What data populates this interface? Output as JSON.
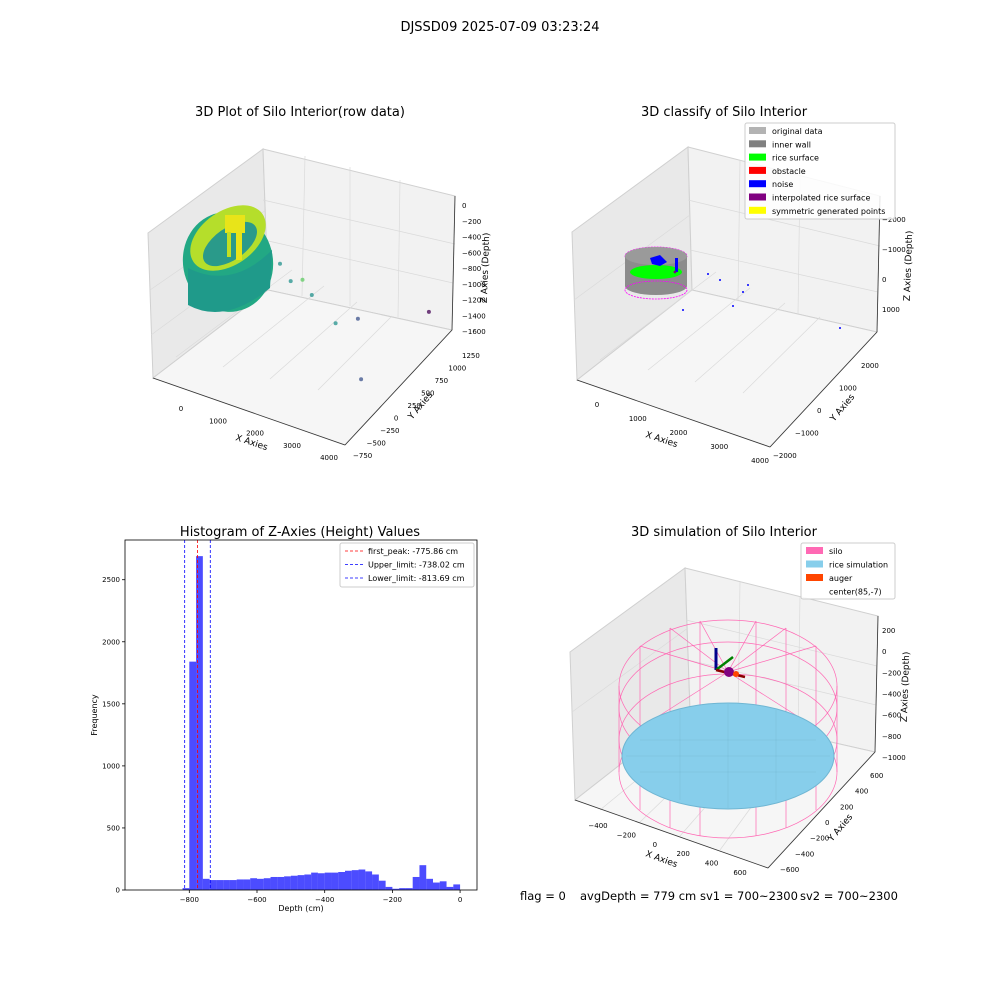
{
  "figure": {
    "title": "DJSSD09 2025-07-09 03:23:24",
    "footer": {
      "flag": "flag = 0",
      "avg": "avgDepth = 779 cm",
      "sv1": "sv1 = 700~2300",
      "sv2": "sv2 = 700~2300"
    }
  },
  "colors": {
    "hist": "#0000ff",
    "silo": "#ff69b4",
    "rice_sim": "#87ceeb",
    "auger": "#ff4500",
    "original": "#b3b3b3",
    "inner_wall": "#808080",
    "rice_surface": "#00ff00",
    "obstacle": "#ff0000",
    "noise": "#0000ff",
    "interpolated": "#800080",
    "symmetric": "#ffff00"
  },
  "chart_data": [
    {
      "type": "scatter",
      "title": "3D Plot of Silo Interior(row data)",
      "xlabel": "X Axies",
      "ylabel": "Y Axies",
      "zlabel": "Z Axies (Depth)",
      "x_ticks": [
        "0",
        "1000",
        "2000",
        "3000",
        "4000"
      ],
      "y_ticks": [
        "−750",
        "−500",
        "−250",
        "0",
        "250",
        "500",
        "750",
        "1000",
        "1250"
      ],
      "z_ticks": [
        "−1600",
        "−1400",
        "−1200",
        "−1000",
        "−800",
        "−600",
        "−400",
        "−200",
        "0"
      ],
      "colormap": "viridis",
      "points": [
        {
          "x": 1500,
          "y": 250,
          "z": -600
        },
        {
          "x": 1900,
          "y": 500,
          "z": -850
        },
        {
          "x": 2350,
          "y": 750,
          "z": -880
        },
        {
          "x": 2050,
          "y": 300,
          "z": -1000
        },
        {
          "x": 1600,
          "y": -100,
          "z": -1050
        },
        {
          "x": 2500,
          "y": -100,
          "z": -1300
        },
        {
          "x": 1050,
          "y": -550,
          "z": -1400
        },
        {
          "x": 3950,
          "y": -500,
          "z": -1550
        }
      ]
    },
    {
      "type": "scatter",
      "title": "3D classify of Silo Interior",
      "xlabel": "X Axies",
      "ylabel": "Y Axies",
      "zlabel": "Z Axies (Depth)",
      "x_ticks": [
        "0",
        "1000",
        "2000",
        "3000",
        "4000"
      ],
      "y_ticks": [
        "−2000",
        "−1000",
        "0",
        "1000",
        "2000"
      ],
      "z_ticks": [
        "−2000",
        "−1000",
        "0",
        "1000"
      ],
      "legend": [
        "original data",
        "inner wall",
        "rice surface",
        "obstacle",
        "noise",
        "interpolated rice surface",
        "symmetric generated points"
      ],
      "legend_loc": "top-right"
    },
    {
      "type": "bar",
      "title": "Histogram of Z-Axies (Height) Values",
      "xlabel": "Depth (cm)",
      "ylabel": "Frequency",
      "xlim": [
        -990,
        50
      ],
      "ylim": [
        0,
        2820
      ],
      "x_ticks": [
        -800,
        -600,
        -400,
        -200,
        0
      ],
      "x_tick_labels": [
        "−800",
        "−600",
        "−400",
        "−200",
        "0"
      ],
      "y_ticks": [
        0,
        500,
        1000,
        1500,
        2000,
        2500
      ],
      "bin_width": 20,
      "bins_start": [
        -820,
        -800,
        -780,
        -760,
        -740,
        -720,
        -700,
        -680,
        -660,
        -640,
        -620,
        -600,
        -580,
        -560,
        -540,
        -520,
        -500,
        -480,
        -460,
        -440,
        -420,
        -400,
        -380,
        -360,
        -340,
        -320,
        -300,
        -280,
        -260,
        -240,
        -220,
        -200,
        -180,
        -160,
        -140,
        -120,
        -100,
        -80,
        -60,
        -40,
        -20,
        0
      ],
      "values": [
        15,
        1840,
        2690,
        90,
        80,
        80,
        80,
        80,
        85,
        85,
        95,
        90,
        95,
        105,
        105,
        110,
        115,
        120,
        125,
        140,
        135,
        140,
        140,
        145,
        155,
        160,
        165,
        150,
        125,
        75,
        25,
        10,
        15,
        15,
        105,
        200,
        90,
        60,
        70,
        25,
        45,
        0
      ],
      "vlines": [
        {
          "label": "first_peak: -775.86 cm",
          "x": -775.86,
          "color": "#ff0000"
        },
        {
          "label": "Upper_limit: -738.02 cm",
          "x": -738.02,
          "color": "#0000ff"
        },
        {
          "label": "Lower_limit: -813.69 cm",
          "x": -813.69,
          "color": "#0000ff"
        }
      ],
      "legend_loc": "top-right"
    },
    {
      "type": "scatter",
      "title": "3D simulation of Silo Interior",
      "xlabel": "X Axies",
      "ylabel": "Y Axies",
      "zlabel": "Z Axies (Depth)",
      "x_ticks": [
        "−400",
        "−200",
        "0",
        "200",
        "400",
        "600"
      ],
      "y_ticks": [
        "−600",
        "−400",
        "−200",
        "0",
        "200",
        "400",
        "600"
      ],
      "z_ticks": [
        "−1000",
        "−800",
        "−600",
        "−400",
        "−200",
        "0",
        "200"
      ],
      "legend": [
        "silo",
        "rice simulation",
        "auger",
        "center(85,-7)"
      ],
      "legend_loc": "top-right"
    }
  ]
}
